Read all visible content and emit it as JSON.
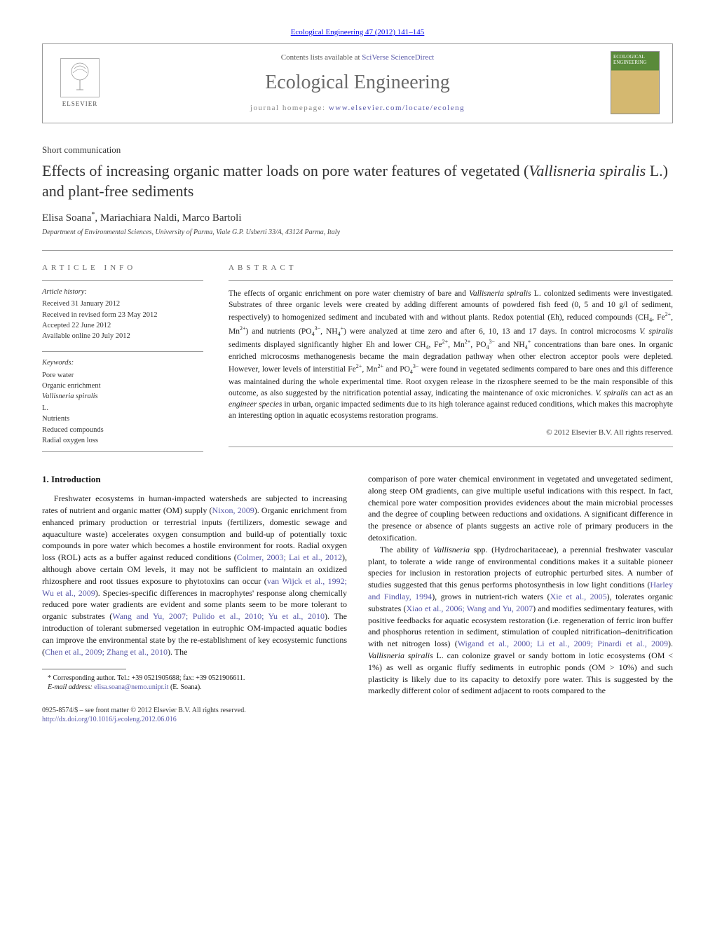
{
  "citation": "Ecological Engineering 47 (2012) 141–145",
  "header": {
    "contents_prefix": "Contents lists available at ",
    "contents_link": "SciVerse ScienceDirect",
    "journal_title": "Ecological Engineering",
    "homepage_prefix": "journal homepage: ",
    "homepage_url": "www.elsevier.com/locate/ecoleng",
    "publisher": "ELSEVIER",
    "cover_label": "ECOLOGICAL ENGINEERING"
  },
  "article": {
    "type": "Short communication",
    "title_html": "Effects of increasing organic matter loads on pore water features of vegetated (<em>Vallisneria spiralis</em> L.) and plant-free sediments",
    "authors_html": "Elisa Soana<sup>*</sup>, Mariachiara Naldi, Marco Bartoli",
    "affiliation": "Department of Environmental Sciences, University of Parma, Viale G.P. Usberti 33/A, 43124 Parma, Italy"
  },
  "info": {
    "heading": "ARTICLE INFO",
    "history_label": "Article history:",
    "history": [
      "Received 31 January 2012",
      "Received in revised form 23 May 2012",
      "Accepted 22 June 2012",
      "Available online 20 July 2012"
    ],
    "keywords_label": "Keywords:",
    "keywords_html": [
      "Pore water",
      "Organic enrichment",
      "<em>Vallisneria spiralis</em> L.",
      "Nutrients",
      "Reduced compounds",
      "Radial oxygen loss"
    ]
  },
  "abstract": {
    "heading": "ABSTRACT",
    "text_html": "The effects of organic enrichment on pore water chemistry of bare and <em>Vallisneria spiralis</em> L. colonized sediments were investigated. Substrates of three organic levels were created by adding different amounts of powdered fish feed (0, 5 and 10 g/l of sediment, respectively) to homogenized sediment and incubated with and without plants. Redox potential (Eh), reduced compounds (CH<sub>4</sub>, Fe<sup>2+</sup>, Mn<sup>2+</sup>) and nutrients (PO<sub>4</sub><sup>3−</sup>, NH<sub>4</sub><sup>+</sup>) were analyzed at time zero and after 6, 10, 13 and 17 days. In control microcosms <em>V. spiralis</em> sediments displayed significantly higher Eh and lower CH<sub>4</sub>, Fe<sup>2+</sup>, Mn<sup>2+</sup>, PO<sub>4</sub><sup>3−</sup> and NH<sub>4</sub><sup>+</sup> concentrations than bare ones. In organic enriched microcosms methanogenesis became the main degradation pathway when other electron acceptor pools were depleted. However, lower levels of interstitial Fe<sup>2+</sup>, Mn<sup>2+</sup> and PO<sub>4</sub><sup>3−</sup> were found in vegetated sediments compared to bare ones and this difference was maintained during the whole experimental time. Root oxygen release in the rizosphere seemed to be the main responsible of this outcome, as also suggested by the nitrification potential assay, indicating the maintenance of oxic microniches. <em>V. spiralis</em> can act as an <em>engineer species</em> in urban, organic impacted sediments due to its high tolerance against reduced conditions, which makes this macrophyte an interesting option in aquatic ecosystems restoration programs.",
    "copyright": "© 2012 Elsevier B.V. All rights reserved."
  },
  "body": {
    "section_heading": "1.  Introduction",
    "col1_html": "Freshwater ecosystems in human-impacted watersheds are subjected to increasing rates of nutrient and organic matter (OM) supply (<a href='#'>Nixon, 2009</a>). Organic enrichment from enhanced primary production or terrestrial inputs (fertilizers, domestic sewage and aquaculture waste) accelerates oxygen consumption and build-up of potentially toxic compounds in pore water which becomes a hostile environment for roots. Radial oxygen loss (ROL) acts as a buffer against reduced conditions (<a href='#'>Colmer, 2003; Lai et al., 2012</a>), although above certain OM levels, it may not be sufficient to maintain an oxidized rhizosphere and root tissues exposure to phytotoxins can occur (<a href='#'>van Wijck et al., 1992; Wu et al., 2009</a>). Species-specific differences in macrophytes' response along chemically reduced pore water gradients are evident and some plants seem to be more tolerant to organic substrates (<a href='#'>Wang and Yu, 2007; Pulido et al., 2010; Yu et al., 2010</a>). The introduction of tolerant submersed vegetation in eutrophic OM-impacted aquatic bodies can improve the environmental state by the re-establishment of key ecosystemic functions (<a href='#'>Chen et al., 2009; Zhang et al., 2010</a>). The",
    "col2_html": "comparison of pore water chemical environment in vegetated and unvegetated sediment, along steep OM gradients, can give multiple useful indications with this respect. In fact, chemical pore water composition provides evidences about the main microbial processes and the degree of coupling between reductions and oxidations. A significant difference in the presence or absence of plants suggests an active role of primary producers in the detoxification.",
    "col2_p2_html": "The ability of <em>Vallisneria</em> spp. (Hydrocharitaceae), a perennial freshwater vascular plant, to tolerate a wide range of environmental conditions makes it a suitable pioneer species for inclusion in restoration projects of eutrophic perturbed sites. A number of studies suggested that this genus performs photosynthesis in low light conditions (<a href='#'>Harley and Findlay, 1994</a>), grows in nutrient-rich waters (<a href='#'>Xie et al., 2005</a>), tolerates organic substrates (<a href='#'>Xiao et al., 2006; Wang and Yu, 2007</a>) and modifies sedimentary features, with positive feedbacks for aquatic ecosystem restoration (i.e. regeneration of ferric iron buffer and phosphorus retention in sediment, stimulation of coupled nitrification–denitrification with net nitrogen loss) (<a href='#'>Wigand et al., 2000; Li et al., 2009; Pinardi et al., 2009</a>). <em>Vallisneria spiralis</em> L. can colonize gravel or sandy bottom in lotic ecosystems (OM &lt; 1%) as well as organic fluffy sediments in eutrophic ponds (OM &gt; 10%) and such plasticity is likely due to its capacity to detoxify pore water. This is suggested by the markedly different color of sediment adjacent to roots compared to the"
  },
  "footnote": {
    "corr_html": "* Corresponding author. Tel.: +39 0521905688; fax: +39 0521906611.",
    "email_label": "E-mail address:",
    "email": "elisa.soana@nemo.unipr.it",
    "email_suffix": " (E. Soana)."
  },
  "footer": {
    "line1": "0925-8574/$ – see front matter © 2012 Elsevier B.V. All rights reserved.",
    "doi": "http://dx.doi.org/10.1016/j.ecoleng.2012.06.016"
  },
  "colors": {
    "link": "#5858a8",
    "text": "#1a1a1a",
    "heading_gray": "#666666",
    "rule": "#999999",
    "background": "#ffffff"
  },
  "typography": {
    "body_pt": 12,
    "title_pt": 22,
    "journal_title_pt": 28,
    "abstract_pt": 11.5,
    "info_pt": 10.5,
    "font_family": "Georgia, Times New Roman, serif"
  }
}
